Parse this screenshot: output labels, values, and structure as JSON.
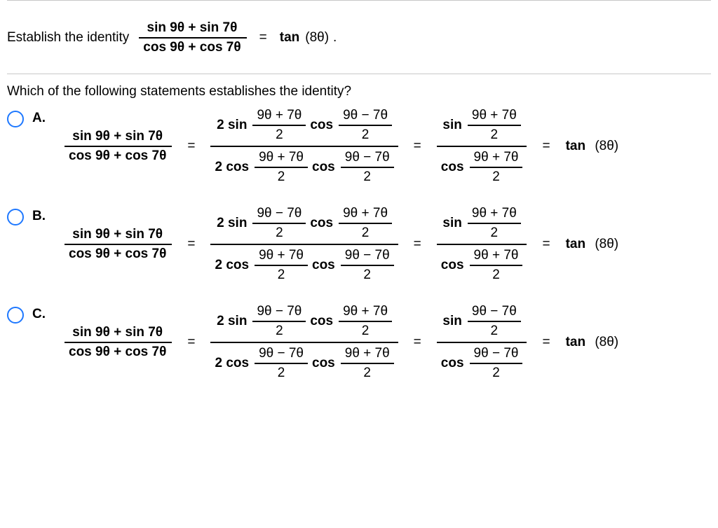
{
  "prompt": {
    "lead": "Establish the identity",
    "lhs_num": "sin 9θ + sin 7θ",
    "lhs_den": "cos 9θ + cos 7θ",
    "eq": "=",
    "rhs_fn": "tan",
    "rhs_arg": "(8θ)",
    "period": "."
  },
  "question": "Which of the following statements establishes the identity?",
  "common": {
    "first_num": "sin 9θ + sin 7θ",
    "first_den": "cos 9θ + cos 7θ"
  },
  "options": [
    {
      "label": "A.",
      "step2": {
        "num_coef": "2 sin",
        "num_f1_top": "9θ + 7θ",
        "num_f1_bot": "2",
        "num_mid": "cos",
        "num_f2_top": "9θ − 7θ",
        "num_f2_bot": "2",
        "den_coef": "2 cos",
        "den_f1_top": "9θ + 7θ",
        "den_f1_bot": "2",
        "den_mid": "cos",
        "den_f2_top": "9θ − 7θ",
        "den_f2_bot": "2"
      },
      "step3": {
        "num_fn": "sin",
        "num_top": "9θ + 7θ",
        "num_bot": "2",
        "den_fn": "cos",
        "den_top": "9θ + 7θ",
        "den_bot": "2"
      },
      "rhs_fn": "tan",
      "rhs_arg": "(8θ)"
    },
    {
      "label": "B.",
      "step2": {
        "num_coef": "2 sin",
        "num_f1_top": "9θ − 7θ",
        "num_f1_bot": "2",
        "num_mid": "cos",
        "num_f2_top": "9θ + 7θ",
        "num_f2_bot": "2",
        "den_coef": "2 cos",
        "den_f1_top": "9θ + 7θ",
        "den_f1_bot": "2",
        "den_mid": "cos",
        "den_f2_top": "9θ − 7θ",
        "den_f2_bot": "2"
      },
      "step3": {
        "num_fn": "sin",
        "num_top": "9θ + 7θ",
        "num_bot": "2",
        "den_fn": "cos",
        "den_top": "9θ + 7θ",
        "den_bot": "2"
      },
      "rhs_fn": "tan",
      "rhs_arg": "(8θ)"
    },
    {
      "label": "C.",
      "step2": {
        "num_coef": "2 sin",
        "num_f1_top": "9θ − 7θ",
        "num_f1_bot": "2",
        "num_mid": "cos",
        "num_f2_top": "9θ + 7θ",
        "num_f2_bot": "2",
        "den_coef": "2 cos",
        "den_f1_top": "9θ − 7θ",
        "den_f1_bot": "2",
        "den_mid": "cos",
        "den_f2_top": "9θ + 7θ",
        "den_f2_bot": "2"
      },
      "step3": {
        "num_fn": "sin",
        "num_top": "9θ − 7θ",
        "num_bot": "2",
        "den_fn": "cos",
        "den_top": "9θ − 7θ",
        "den_bot": "2"
      },
      "rhs_fn": "tan",
      "rhs_arg": "(8θ)"
    }
  ],
  "style": {
    "accent": "#1e78ff",
    "rule": "#c7c7c7",
    "text": "#000000",
    "font_family": "Arial",
    "font_size_pt": 14
  }
}
